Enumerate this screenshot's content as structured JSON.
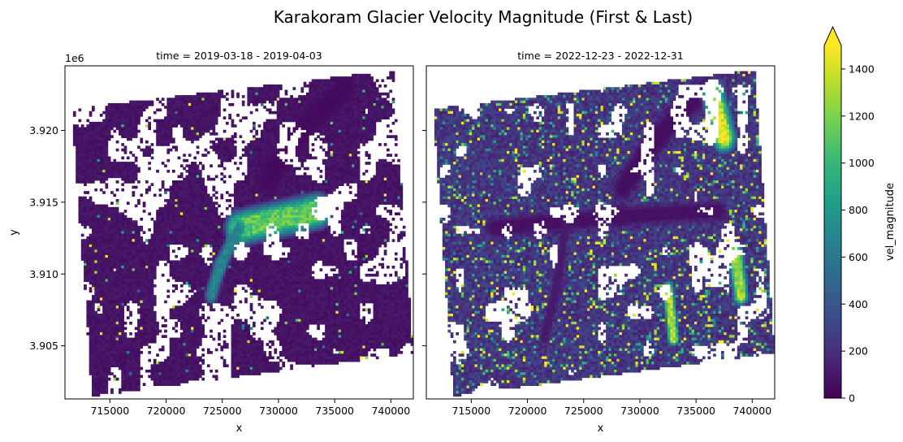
{
  "chart_data": {
    "type": "heatmap",
    "title": "Karakoram Glacier Velocity Magnitude (First & Last)",
    "colorbar": {
      "label": "vel_magnitude",
      "range": [
        0,
        1500
      ],
      "ticks": [
        0,
        200,
        400,
        600,
        800,
        1000,
        1200,
        1400
      ],
      "tick_labels": [
        "0",
        "200",
        "400",
        "600",
        "800",
        "1000",
        "1200",
        "1400"
      ],
      "extend": "max",
      "colormap": "viridis"
    },
    "shared": {
      "xlabel": "x",
      "ylabel": "y",
      "y_offset_label": "1e6",
      "xlim": [
        711000,
        742000
      ],
      "ylim": [
        3901300,
        3924500
      ],
      "x_ticks": [
        715000,
        720000,
        725000,
        730000,
        735000,
        740000
      ],
      "x_tick_labels": [
        "715000",
        "720000",
        "725000",
        "730000",
        "735000",
        "740000"
      ],
      "y_ticks": [
        3905000,
        3910000,
        3915000,
        3920000
      ],
      "y_tick_labels": [
        "3.905",
        "3.910",
        "3.915",
        "3.920"
      ]
    },
    "panels": [
      {
        "subtitle": "time = 2019-03-18 - 2019-04-03",
        "footprint_corners": [
          [
            713400,
            3901500
          ],
          [
            742000,
            3904500
          ],
          [
            740200,
            3924200
          ],
          [
            711600,
            3921500
          ]
        ],
        "background_level": 80,
        "speckle_fraction": 0.02,
        "nodata_fraction": 0.18,
        "features": [
          {
            "name": "main glacier trunk",
            "points": [
              [
                726500,
                3913200
              ],
              [
                733500,
                3914400
              ]
            ],
            "width": 3000,
            "value": 1150
          },
          {
            "name": "glacier tongue",
            "points": [
              [
                726500,
                3913200
              ],
              [
                724800,
                3910600
              ],
              [
                724000,
                3908500
              ]
            ],
            "width": 1400,
            "value": 700
          },
          {
            "name": "northern valley",
            "points": [
              [
                736000,
                3923000
              ],
              [
                731500,
                3919500
              ],
              [
                729000,
                3916500
              ]
            ],
            "width": 2200,
            "value": 40
          }
        ]
      },
      {
        "subtitle": "time = 2022-12-23 - 2022-12-31",
        "footprint_corners": [
          [
            713400,
            3901500
          ],
          [
            742000,
            3904500
          ],
          [
            740200,
            3924200
          ],
          [
            711600,
            3921500
          ]
        ],
        "background_level": 230,
        "speckle_fraction": 0.14,
        "nodata_fraction": 0.12,
        "features": [
          {
            "name": "main glacier trunk",
            "points": [
              [
                717000,
                3913200
              ],
              [
                728000,
                3914000
              ],
              [
                737000,
                3914400
              ]
            ],
            "width": 1800,
            "value": 70
          },
          {
            "name": "northern valley",
            "points": [
              [
                736000,
                3923000
              ],
              [
                731500,
                3919500
              ],
              [
                728500,
                3916000
              ]
            ],
            "width": 2400,
            "value": 60
          },
          {
            "name": "tributary",
            "points": [
              [
                723500,
                3914000
              ],
              [
                722600,
                3909000
              ],
              [
                721500,
                3905500
              ]
            ],
            "width": 1100,
            "value": 110
          },
          {
            "name": "fast ice zone",
            "points": [
              [
                736500,
                3922500
              ],
              [
                737500,
                3919500
              ]
            ],
            "width": 2400,
            "value": 1450
          },
          {
            "name": "fast ice zone east",
            "points": [
              [
                738500,
                3911500
              ],
              [
                739000,
                3908500
              ]
            ],
            "width": 1600,
            "value": 1300
          },
          {
            "name": "fast ice zone south",
            "points": [
              [
                732500,
                3909000
              ],
              [
                733000,
                3905500
              ]
            ],
            "width": 1200,
            "value": 1350
          }
        ]
      }
    ]
  }
}
